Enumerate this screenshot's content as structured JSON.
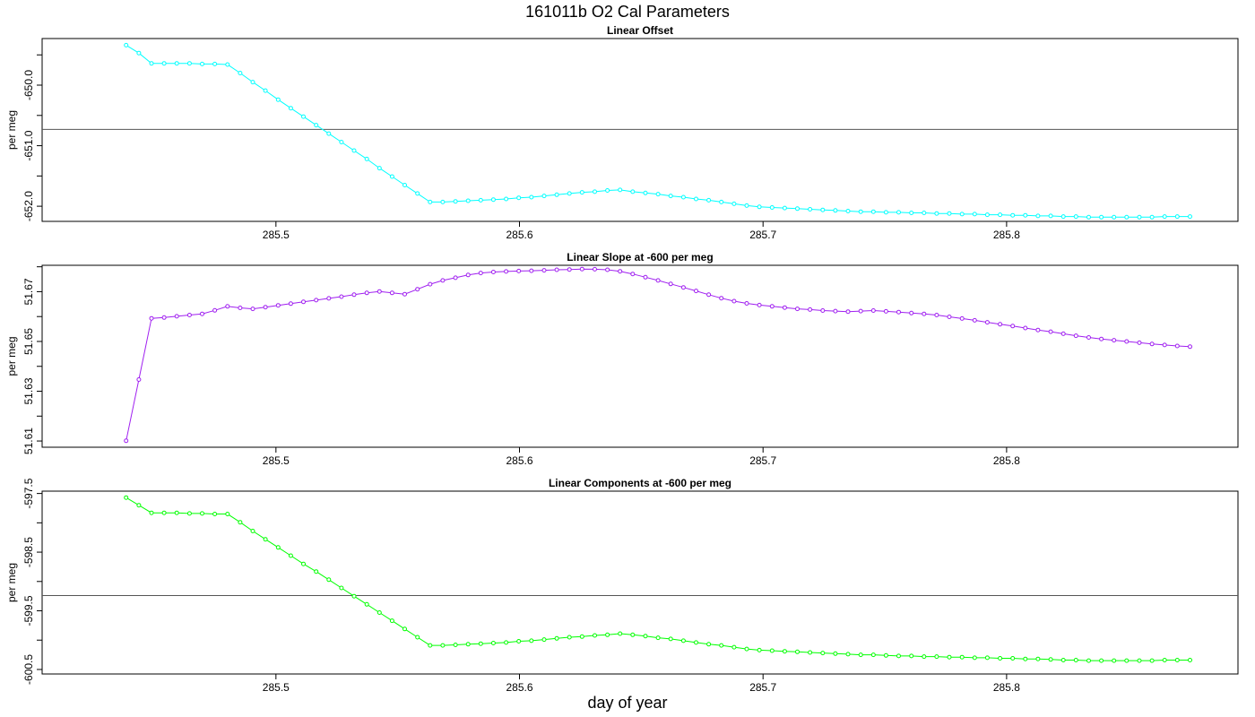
{
  "title": "161011b   O2 Cal Parameters",
  "xlabel": "day of year",
  "chart_data": [
    {
      "type": "line",
      "title": "Linear Offset",
      "ylabel": "per meg",
      "color": "#00FFFF",
      "reference_line": -650.73,
      "xlim": [
        285.404,
        285.895
      ],
      "ylim": [
        -652.25,
        -649.23
      ],
      "xticks": [
        "285.5",
        "285.6",
        "285.7",
        "285.8"
      ],
      "yticks": [
        "-650.0",
        "-651.0",
        "-652.0"
      ],
      "series": [
        {
          "x": [
            285.4385,
            285.4437,
            285.4489,
            285.4541,
            285.4593,
            285.4645,
            285.4697,
            285.4749,
            285.4801,
            285.4853,
            285.4905,
            285.4957,
            285.5009,
            285.5061,
            285.5113,
            285.5165,
            285.5217,
            285.5269,
            285.5321,
            285.5373,
            285.5425,
            285.5477,
            285.5529,
            285.5581,
            285.5633,
            285.5685,
            285.5737,
            285.5789,
            285.5841,
            285.5893,
            285.5945,
            285.5997,
            285.6049,
            285.6101,
            285.6153,
            285.6205,
            285.6257,
            285.6309,
            285.6361,
            285.6413,
            285.6465,
            285.6517,
            285.6569,
            285.6621,
            285.6673,
            285.6725,
            285.6777,
            285.6829,
            285.6881,
            285.6933,
            285.6985,
            285.7037,
            285.7089,
            285.7141,
            285.7193,
            285.7245,
            285.7297,
            285.7349,
            285.7401,
            285.7453,
            285.7505,
            285.7557,
            285.7609,
            285.7661,
            285.7713,
            285.7765,
            285.7817,
            285.7869,
            285.7921,
            285.7973,
            285.8025,
            285.8077,
            285.8129,
            285.8181,
            285.8233,
            285.8285,
            285.8337,
            285.8389,
            285.8441,
            285.8493,
            285.8545,
            285.8597,
            285.8649,
            285.8701,
            285.8753
          ],
          "y": [
            -649.34,
            -649.47,
            -649.64,
            -649.64,
            -649.64,
            -649.64,
            -649.65,
            -649.65,
            -649.66,
            -649.8,
            -649.95,
            -650.09,
            -650.24,
            -650.38,
            -650.52,
            -650.66,
            -650.8,
            -650.94,
            -651.08,
            -651.22,
            -651.37,
            -651.51,
            -651.65,
            -651.79,
            -651.93,
            -651.93,
            -651.92,
            -651.91,
            -651.9,
            -651.89,
            -651.88,
            -651.86,
            -651.85,
            -651.83,
            -651.81,
            -651.79,
            -651.77,
            -651.76,
            -651.74,
            -651.73,
            -651.76,
            -651.78,
            -651.8,
            -651.83,
            -651.85,
            -651.88,
            -651.9,
            -651.93,
            -651.96,
            -651.99,
            -652.01,
            -652.02,
            -652.03,
            -652.04,
            -652.05,
            -652.06,
            -652.07,
            -652.08,
            -652.09,
            -652.09,
            -652.1,
            -652.1,
            -652.11,
            -652.11,
            -652.12,
            -652.12,
            -652.13,
            -652.13,
            -652.14,
            -652.14,
            -652.15,
            -652.15,
            -652.16,
            -652.16,
            -652.17,
            -652.17,
            -652.18,
            -652.18,
            -652.18,
            -652.18,
            -652.18,
            -652.18,
            -652.17,
            -652.17,
            -652.17
          ]
        }
      ]
    },
    {
      "type": "line",
      "title": "Linear Slope at -600 per meg",
      "ylabel": "per meg",
      "color": "#A020F0",
      "xlim": [
        285.404,
        285.895
      ],
      "ylim": [
        51.6075,
        51.6806
      ],
      "xticks": [
        "285.5",
        "285.6",
        "285.7",
        "285.8"
      ],
      "yticks": [
        "51.61",
        "51.63",
        "51.65",
        "51.67"
      ],
      "series": [
        {
          "x": [
            285.4385,
            285.4437,
            285.4489,
            285.4541,
            285.4593,
            285.4645,
            285.4697,
            285.4749,
            285.4801,
            285.4853,
            285.4905,
            285.4957,
            285.5009,
            285.5061,
            285.5113,
            285.5165,
            285.5217,
            285.5269,
            285.5321,
            285.5373,
            285.5425,
            285.5477,
            285.5529,
            285.5581,
            285.5633,
            285.5685,
            285.5737,
            285.5789,
            285.5841,
            285.5893,
            285.5945,
            285.5997,
            285.6049,
            285.6101,
            285.6153,
            285.6205,
            285.6257,
            285.6309,
            285.6361,
            285.6413,
            285.6465,
            285.6517,
            285.6569,
            285.6621,
            285.6673,
            285.6725,
            285.6777,
            285.6829,
            285.6881,
            285.6933,
            285.6985,
            285.7037,
            285.7089,
            285.7141,
            285.7193,
            285.7245,
            285.7297,
            285.7349,
            285.7401,
            285.7453,
            285.7505,
            285.7557,
            285.7609,
            285.7661,
            285.7713,
            285.7765,
            285.7817,
            285.7869,
            285.7921,
            285.7973,
            285.8025,
            285.8077,
            285.8129,
            285.8181,
            285.8233,
            285.8285,
            285.8337,
            285.8389,
            285.8441,
            285.8493,
            285.8545,
            285.8597,
            285.8649,
            285.8701,
            285.8753
          ],
          "y": [
            51.6101,
            51.6347,
            51.6593,
            51.6596,
            51.6601,
            51.6606,
            51.6611,
            51.6625,
            51.6641,
            51.6635,
            51.6631,
            51.6638,
            51.6645,
            51.6652,
            51.6659,
            51.6666,
            51.6673,
            51.668,
            51.6688,
            51.6695,
            51.6701,
            51.6695,
            51.669,
            51.671,
            51.673,
            51.6745,
            51.6756,
            51.6767,
            51.6775,
            51.6779,
            51.6781,
            51.6783,
            51.6784,
            51.6786,
            51.6788,
            51.6789,
            51.6791,
            51.679,
            51.6788,
            51.6782,
            51.6771,
            51.6758,
            51.6745,
            51.6731,
            51.6717,
            51.6703,
            51.6688,
            51.6674,
            51.6662,
            51.6653,
            51.6646,
            51.6641,
            51.6636,
            51.6631,
            51.6628,
            51.6624,
            51.6622,
            51.662,
            51.6622,
            51.6624,
            51.6621,
            51.6618,
            51.6614,
            51.6611,
            51.6606,
            51.6599,
            51.6592,
            51.6585,
            51.6577,
            51.6569,
            51.6562,
            51.6554,
            51.6546,
            51.6539,
            51.6531,
            51.6523,
            51.6516,
            51.651,
            51.6505,
            51.65,
            51.6495,
            51.649,
            51.6486,
            51.6482,
            51.6479
          ]
        }
      ]
    },
    {
      "type": "line",
      "title": "Linear Components at -600 per meg",
      "ylabel": "per meg",
      "color": "#00FF00",
      "reference_line": -599.24,
      "xlim": [
        285.404,
        285.895
      ],
      "ylim": [
        -600.577,
        -597.46
      ],
      "xticks": [
        "285.5",
        "285.6",
        "285.7",
        "285.8"
      ],
      "yticks": [
        "-597.5",
        "-598.5",
        "-599.5",
        "-600.5"
      ],
      "series": [
        {
          "x": [
            285.4385,
            285.4437,
            285.4489,
            285.4541,
            285.4593,
            285.4645,
            285.4697,
            285.4749,
            285.4801,
            285.4853,
            285.4905,
            285.4957,
            285.5009,
            285.5061,
            285.5113,
            285.5165,
            285.5217,
            285.5269,
            285.5321,
            285.5373,
            285.5425,
            285.5477,
            285.5529,
            285.5581,
            285.5633,
            285.5685,
            285.5737,
            285.5789,
            285.5841,
            285.5893,
            285.5945,
            285.5997,
            285.6049,
            285.6101,
            285.6153,
            285.6205,
            285.6257,
            285.6309,
            285.6361,
            285.6413,
            285.6465,
            285.6517,
            285.6569,
            285.6621,
            285.6673,
            285.6725,
            285.6777,
            285.6829,
            285.6881,
            285.6933,
            285.6985,
            285.7037,
            285.7089,
            285.7141,
            285.7193,
            285.7245,
            285.7297,
            285.7349,
            285.7401,
            285.7453,
            285.7505,
            285.7557,
            285.7609,
            285.7661,
            285.7713,
            285.7765,
            285.7817,
            285.7869,
            285.7921,
            285.7973,
            285.8025,
            285.8077,
            285.8129,
            285.8181,
            285.8233,
            285.8285,
            285.8337,
            285.8389,
            285.8441,
            285.8493,
            285.8545,
            285.8597,
            285.8649,
            285.8701,
            285.8753
          ],
          "y": [
            -597.57,
            -597.7,
            -597.83,
            -597.83,
            -597.83,
            -597.84,
            -597.84,
            -597.85,
            -597.85,
            -597.99,
            -598.14,
            -598.28,
            -598.42,
            -598.56,
            -598.7,
            -598.83,
            -598.97,
            -599.11,
            -599.25,
            -599.39,
            -599.53,
            -599.67,
            -599.81,
            -599.95,
            -600.09,
            -600.09,
            -600.08,
            -600.07,
            -600.06,
            -600.05,
            -600.04,
            -600.02,
            -600.01,
            -599.99,
            -599.97,
            -599.95,
            -599.94,
            -599.92,
            -599.91,
            -599.89,
            -599.91,
            -599.93,
            -599.96,
            -599.98,
            -600.01,
            -600.04,
            -600.07,
            -600.09,
            -600.12,
            -600.15,
            -600.17,
            -600.18,
            -600.19,
            -600.2,
            -600.21,
            -600.22,
            -600.23,
            -600.24,
            -600.25,
            -600.25,
            -600.26,
            -600.27,
            -600.27,
            -600.28,
            -600.28,
            -600.29,
            -600.29,
            -600.3,
            -600.3,
            -600.31,
            -600.31,
            -600.32,
            -600.32,
            -600.33,
            -600.34,
            -600.34,
            -600.35,
            -600.35,
            -600.35,
            -600.35,
            -600.35,
            -600.35,
            -600.34,
            -600.34,
            -600.34
          ]
        }
      ]
    }
  ]
}
